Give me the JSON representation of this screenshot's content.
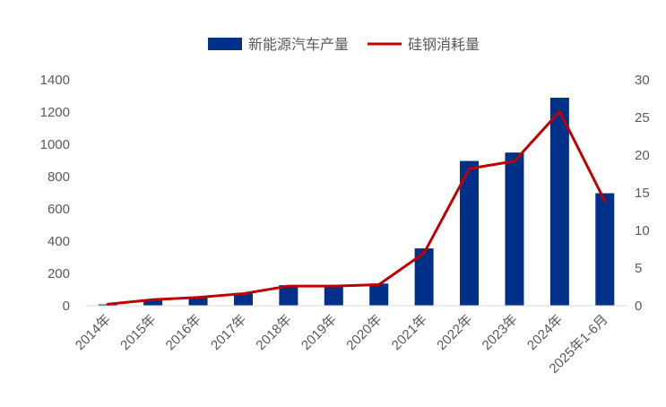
{
  "chart_data": {
    "type": "bar",
    "title": "",
    "xlabel": "",
    "ylabel": "",
    "y2label": "",
    "categories": [
      "2014年",
      "2015年",
      "2016年",
      "2017年",
      "2018年",
      "2019年",
      "2020年",
      "2021年",
      "2022年",
      "2023年",
      "2024年",
      "2025年1-6月"
    ],
    "series": [
      {
        "name": "新能源汽车产量",
        "type": "bar",
        "axis": "left",
        "color": "#003087",
        "values": [
          8,
          34,
          52,
          79,
          127,
          124,
          137,
          355,
          897,
          949,
          1289,
          697
        ]
      },
      {
        "name": "硅钢消耗量",
        "type": "line",
        "axis": "right",
        "color": "#c00000",
        "values": [
          0.2,
          0.8,
          1.1,
          1.6,
          2.6,
          2.6,
          2.8,
          7.0,
          18.2,
          19.2,
          25.8,
          13.9
        ]
      }
    ],
    "ylim": [
      0,
      1400
    ],
    "y_ticks": [
      "0",
      "200",
      "400",
      "600",
      "800",
      "1000",
      "1200",
      "1400"
    ],
    "y2lim": [
      0,
      30
    ],
    "y2_ticks": [
      "0",
      "5",
      "10",
      "15",
      "20",
      "25",
      "30"
    ],
    "grid": false,
    "legend_position": "top-center"
  }
}
